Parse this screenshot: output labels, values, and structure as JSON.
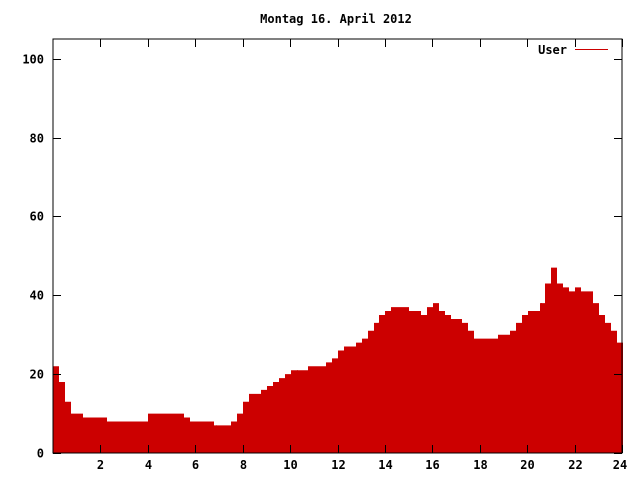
{
  "chart_data": {
    "type": "bar",
    "title": "Montag 16. April 2012",
    "xlabel": "",
    "ylabel": "",
    "xlim": [
      0,
      24
    ],
    "ylim": [
      0,
      105
    ],
    "x_ticks": [
      "2",
      "4",
      "6",
      "8",
      "10",
      "12",
      "14",
      "16",
      "18",
      "20",
      "22",
      "24"
    ],
    "y_ticks": [
      "0",
      "20",
      "40",
      "60",
      "80",
      "100"
    ],
    "legend": {
      "position": "top-right"
    },
    "grid": false,
    "colors": {
      "bars": "#cc0000",
      "axis": "#000000"
    },
    "series": [
      {
        "name": "User",
        "x": [
          0.25,
          0.5,
          0.75,
          1.0,
          1.25,
          1.5,
          1.75,
          2.0,
          2.25,
          2.5,
          2.75,
          3.0,
          3.25,
          3.5,
          3.75,
          4.0,
          4.25,
          4.5,
          4.75,
          5.0,
          5.25,
          5.5,
          5.75,
          6.0,
          6.25,
          6.5,
          6.75,
          7.0,
          7.25,
          7.5,
          7.75,
          8.0,
          8.25,
          8.5,
          8.75,
          9.0,
          9.25,
          9.5,
          9.75,
          10.0,
          10.25,
          10.5,
          10.75,
          11.0,
          11.25,
          11.5,
          11.75,
          12.0,
          12.25,
          12.5,
          12.75,
          13.0,
          13.25,
          13.5,
          13.75,
          14.0,
          14.25,
          14.5,
          14.75,
          15.0,
          15.25,
          15.5,
          15.75,
          16.0,
          16.25,
          16.5,
          16.75,
          17.0,
          17.25,
          17.5,
          17.75,
          18.0,
          18.25,
          18.5,
          18.75,
          19.0,
          19.25,
          19.5,
          19.75,
          20.0,
          20.25,
          20.5,
          20.75,
          21.0,
          21.25,
          21.5,
          21.75,
          22.0,
          22.25,
          22.5,
          22.75,
          23.0,
          23.25,
          23.5,
          23.75,
          24.0
        ],
        "values": [
          22,
          18,
          13,
          10,
          10,
          9,
          9,
          9,
          9,
          8,
          8,
          8,
          8,
          8,
          8,
          8,
          10,
          10,
          10,
          10,
          10,
          10,
          9,
          8,
          8,
          8,
          8,
          7,
          7,
          7,
          8,
          10,
          13,
          15,
          15,
          16,
          17,
          18,
          19,
          20,
          21,
          21,
          21,
          22,
          22,
          22,
          23,
          24,
          26,
          27,
          27,
          28,
          29,
          31,
          33,
          35,
          36,
          37,
          37,
          37,
          36,
          36,
          35,
          37,
          38,
          36,
          35,
          34,
          34,
          33,
          31,
          29,
          29,
          29,
          29,
          30,
          30,
          31,
          33,
          35,
          36,
          36,
          38,
          43,
          47,
          43,
          42,
          41,
          42,
          41,
          41,
          38,
          35,
          33,
          31,
          28
        ]
      }
    ]
  }
}
